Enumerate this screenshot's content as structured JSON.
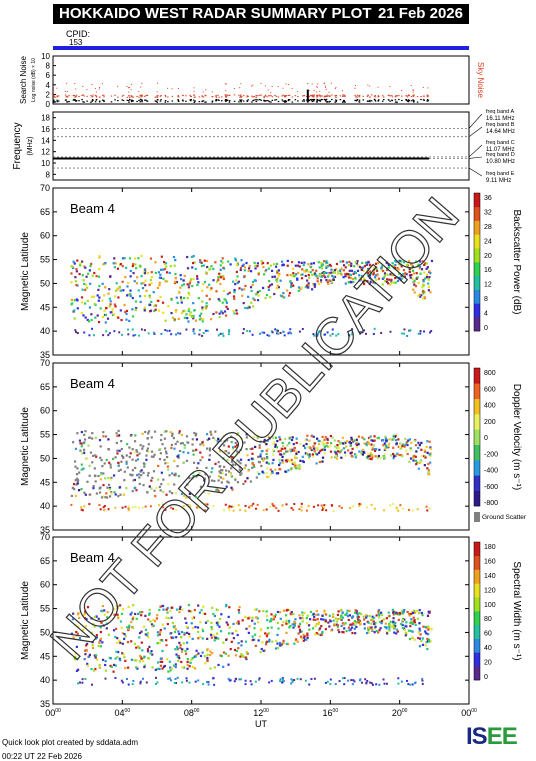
{
  "header": {
    "title": "HOKKAIDO WEST RADAR SUMMARY PLOT",
    "date": "21 Feb 2026"
  },
  "cpid": {
    "label": "CPID:",
    "value": "153"
  },
  "noise_panel": {
    "ylabel_main": "Search Noise",
    "ylabel_sub": "Log noise (dB) × 10",
    "right_label": "Sky Noise",
    "ticks": [
      "0",
      "2",
      "4",
      "6",
      "8",
      "10"
    ]
  },
  "freq_panel": {
    "ylabel": "Frequency",
    "unit": "(MHz)",
    "ticks": [
      "8",
      "10",
      "12",
      "14",
      "16",
      "18"
    ],
    "bands": [
      {
        "name": "freq band A",
        "value": "16.11 MHz",
        "mhz": 16.11
      },
      {
        "name": "freq band B",
        "value": "14.64 MHz",
        "mhz": 14.64
      },
      {
        "name": "freq band C",
        "value": "11.07 MHz",
        "mhz": 11.07
      },
      {
        "name": "freq band D",
        "value": "10.80 MHz",
        "mhz": 10.8
      },
      {
        "name": "freq band E",
        "value": "9.11 MHz",
        "mhz": 9.11
      }
    ]
  },
  "panels": [
    {
      "beam": "Beam  4",
      "ylabel": "Magnetic Latitude",
      "cbar_label": "Backscatter Power (dB)",
      "cbar_ticks": [
        "0",
        "4",
        "8",
        "12",
        "16",
        "20",
        "24",
        "28",
        "32",
        "36"
      ]
    },
    {
      "beam": "Beam  4",
      "ylabel": "Magnetic Latitude",
      "cbar_label": "Doppler Velocity (m s⁻¹)",
      "cbar_ticks": [
        "-800",
        "-600",
        "-400",
        "-200",
        "0",
        "200",
        "400",
        "600",
        "800"
      ],
      "ground_scatter": "Ground Scatter"
    },
    {
      "beam": "Beam  4",
      "ylabel": "Magnetic Latitude",
      "cbar_label": "Spectral Width (m s⁻¹)",
      "cbar_ticks": [
        "0",
        "20",
        "40",
        "60",
        "80",
        "100",
        "120",
        "140",
        "160",
        "180"
      ]
    }
  ],
  "lat_ticks": [
    "35",
    "40",
    "45",
    "50",
    "55",
    "60",
    "65",
    "70"
  ],
  "time_ticks": [
    "00",
    "04",
    "08",
    "12",
    "16",
    "20",
    "00"
  ],
  "time_tick_sup": "00",
  "xlabel": "UT",
  "watermark": "NOT FOR PUBLICATION",
  "footer": {
    "line1": "Quick look plot created by sddata.adm",
    "line2": "00:22 UT 22 Feb 2026"
  },
  "logo": {
    "text_a": "IS",
    "text_b": "EE"
  },
  "colors": {
    "power": [
      "#5a2a8a",
      "#3030e0",
      "#2a8ae0",
      "#20c0a0",
      "#30d050",
      "#a0e020",
      "#e8e020",
      "#f0a020",
      "#e05020",
      "#c81a1a"
    ],
    "velocity": [
      "#c81a1a",
      "#f06020",
      "#f0c020",
      "#e8f060",
      "#a0e060",
      "#40c060",
      "#2a9ae0",
      "#3030c8",
      "#2a1a8a"
    ],
    "ground": "#808080",
    "noise_sky": "#e04020",
    "cpid_bar": "#2020e0"
  },
  "chart_data": {
    "type": "heatmap",
    "x_range_ut_hours": [
      0,
      24
    ],
    "y_range_mlat": [
      35,
      70
    ],
    "radar": "Hokkaido West",
    "beam": 4,
    "scatter_envelope_mlat": {
      "ut_hours": [
        0,
        2,
        4,
        6,
        8,
        10,
        12,
        14,
        16,
        18,
        20,
        22
      ],
      "lower": [
        42,
        42,
        42,
        42,
        42,
        43,
        46,
        48,
        50,
        50,
        50,
        45
      ],
      "upper": [
        56,
        56,
        56,
        56,
        56,
        56,
        55,
        55,
        55,
        55,
        55,
        55
      ]
    },
    "frequency_mhz": 10.8,
    "noise_level": 1.5
  }
}
